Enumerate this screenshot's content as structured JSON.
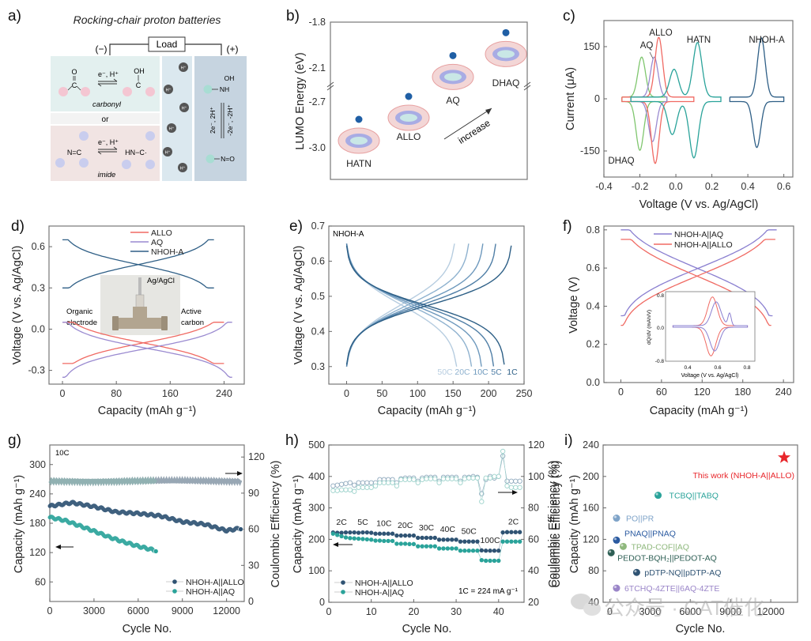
{
  "figure": {
    "panel_labels": [
      "a)",
      "b)",
      "c)",
      "d)",
      "e)",
      "f)",
      "g)",
      "h)",
      "i)"
    ],
    "watermark": "公众号 · CAT催化"
  },
  "panel_a": {
    "title": "Rocking-chair proton batteries",
    "load_label": "Load",
    "neg_label": "(−)",
    "pos_label": "(+)",
    "carbonyl_reaction": "e⁻, H⁺",
    "carbonyl_label": "carbonyl",
    "or_label": "or",
    "imide_reaction": "e⁻, H⁺",
    "imide_label": "imide",
    "imide_left": "N=C",
    "imide_right": "HN−C·",
    "proton_label": "H⁺",
    "cathode_top": "NH",
    "cathode_oh": "OH",
    "cathode_forward": "2e⁻, 2H⁺",
    "cathode_reverse": "-2e⁻, -2H⁺",
    "cathode_bottom": "N=O",
    "colors": {
      "carbonyl_bg": "#e3f0ef",
      "imide_bg": "#f1e4e3",
      "electrolyte_bg": "#dbe8ef",
      "cathode_bg": "#c6d4e0"
    }
  },
  "chart_data": [
    {
      "id": "b",
      "type": "scatter",
      "title": "",
      "xlabel": "",
      "ylabel": "LUMO Energy (eV)",
      "yticks": [
        "-1.8",
        "-2.1",
        "-2.7",
        "-3.0"
      ],
      "axis_break": true,
      "points": [
        {
          "name": "HATN",
          "lumo": -3.0
        },
        {
          "name": "ALLO",
          "lumo": -2.85
        },
        {
          "name": "AQ",
          "lumo": -2.2
        },
        {
          "name": "DHAQ",
          "lumo": -2.05
        }
      ],
      "annotation": "increase"
    },
    {
      "id": "c",
      "type": "line",
      "xlabel": "Voltage (V vs. Ag/AgCl)",
      "ylabel": "Current (μA)",
      "xlim": [
        -0.4,
        0.65
      ],
      "ylim": [
        -225,
        225
      ],
      "xticks": [
        "-0.4",
        "-0.2",
        "0.0",
        "0.2",
        "0.4",
        "0.6"
      ],
      "yticks": [
        "150",
        "0",
        "-150"
      ],
      "series": [
        {
          "name": "DHAQ",
          "color": "#7fc66e",
          "peaks": [
            {
              "v": -0.19,
              "i": 115
            },
            {
              "v": -0.2,
              "i": -140
            }
          ]
        },
        {
          "name": "AQ",
          "color": "#9a8ad0",
          "peaks": [
            {
              "v": -0.12,
              "i": 115
            },
            {
              "v": -0.13,
              "i": -115
            }
          ]
        },
        {
          "name": "ALLO",
          "color": "#f06a63",
          "peaks": [
            {
              "v": -0.095,
              "i": 172
            },
            {
              "v": -0.115,
              "i": -178
            }
          ]
        },
        {
          "name": "HATN",
          "color": "#2aa39a",
          "peaks": [
            {
              "v": -0.01,
              "i": 80
            },
            {
              "v": 0.12,
              "i": 157
            },
            {
              "v": -0.02,
              "i": -95
            },
            {
              "v": 0.1,
              "i": -162
            }
          ]
        },
        {
          "name": "NHOH-A",
          "color": "#2f5f86",
          "peaks": [
            {
              "v": 0.475,
              "i": 170
            },
            {
              "v": 0.45,
              "i": -132
            }
          ]
        }
      ]
    },
    {
      "id": "d",
      "type": "line",
      "xlabel": "Capacity (mAh g⁻¹)",
      "ylabel": "Voltage (V vs. Ag/AgCl)",
      "xlim": [
        -20,
        270
      ],
      "ylim": [
        -0.4,
        0.75
      ],
      "xticks": [
        "0",
        "80",
        "160",
        "240"
      ],
      "yticks": [
        "0.6",
        "0.3",
        "0.0",
        "-0.3"
      ],
      "legend": "top-center",
      "series": [
        {
          "name": "ALLO",
          "color": "#f06a63",
          "capacity": 240,
          "plateau": -0.1
        },
        {
          "name": "AQ",
          "color": "#9a8ad0",
          "capacity": 252,
          "plateau": -0.14
        },
        {
          "name": "NHOH-A",
          "color": "#2f5f86",
          "capacity": 225,
          "plateau": 0.47
        }
      ],
      "inset_labels": {
        "ref": "Ag/AgCl",
        "left": [
          "Organic",
          "electrode"
        ],
        "right": [
          "Active",
          "carbon"
        ]
      }
    },
    {
      "id": "e",
      "type": "line",
      "xlabel": "Capacity (mAh g⁻¹)",
      "ylabel": "Voltage (V vs. Ag/AgCl)",
      "xlim": [
        -25,
        250
      ],
      "ylim": [
        0.25,
        0.7
      ],
      "xticks": [
        "0",
        "50",
        "100",
        "150",
        "200",
        "250"
      ],
      "yticks": [
        "0.7",
        "0.6",
        "0.5",
        "0.4",
        "0.3"
      ],
      "label": "NHOH-A",
      "series": [
        {
          "name": "50C",
          "discharge": 155,
          "charge": 152
        },
        {
          "name": "20C",
          "discharge": 176,
          "charge": 172
        },
        {
          "name": "10C",
          "discharge": 190,
          "charge": 192
        },
        {
          "name": "5C",
          "discharge": 207,
          "charge": 210
        },
        {
          "name": "1C",
          "discharge": 222,
          "charge": 232
        }
      ]
    },
    {
      "id": "f",
      "type": "line",
      "xlabel": "Capacity (mAh g⁻¹)",
      "ylabel": "Voltage (V)",
      "xlim": [
        -25,
        255
      ],
      "ylim": [
        0,
        0.82
      ],
      "xticks": [
        "0",
        "60",
        "120",
        "180",
        "240"
      ],
      "yticks": [
        "0.8",
        "0.6",
        "0.4",
        "0.2",
        "0.0"
      ],
      "legend": "top-center",
      "series": [
        {
          "name": "NHOH-A||AQ",
          "color": "#8a7fd0",
          "capacity": 230,
          "plateau": 0.6
        },
        {
          "name": "NHOH-A||ALLO",
          "color": "#f06a63",
          "capacity": 228,
          "plateau": 0.56
        }
      ],
      "inset": {
        "xlabel": "Voltage (V vs. Ag/AgCl)",
        "ylabel": "dQ/dV (mAh/V)",
        "xticks": [
          "0.4",
          "0.6",
          "0.8"
        ],
        "yticks": [
          "0.8",
          "0.0",
          "-0.8"
        ]
      }
    },
    {
      "id": "g",
      "type": "scatter",
      "xlabel": "Cycle No.",
      "ylabel": "Capacity (mAh g⁻¹)",
      "ylabel_right": "Coulombic Efficiency (%)",
      "xlim": [
        0,
        13200
      ],
      "ylim": [
        20,
        340
      ],
      "ylim_right": [
        0,
        130
      ],
      "xticks": [
        "0",
        "3000",
        "6000",
        "9000",
        "12000"
      ],
      "yticks": [
        "300",
        "240",
        "180",
        "120",
        "60"
      ],
      "yticks_right": [
        "120",
        "90",
        "60",
        "30",
        "0"
      ],
      "rate_label": "10C",
      "legend": "bottom-right",
      "series": [
        {
          "name": "NHOH-A||ALLO",
          "color": "#2f5373",
          "x": [
            0,
            1500,
            3000,
            4500,
            6000,
            7500,
            9000,
            10500,
            12000,
            13000
          ],
          "capacity": [
            215,
            222,
            214,
            203,
            200,
            195,
            183,
            178,
            165,
            170
          ],
          "ce": 100
        },
        {
          "name": "NHOH-A||AQ",
          "color": "#2aa39a",
          "x": [
            0,
            1000,
            2000,
            3000,
            4000,
            5000,
            6000,
            7200
          ],
          "capacity": [
            192,
            186,
            175,
            164,
            152,
            142,
            133,
            124
          ],
          "ce": 100
        }
      ]
    },
    {
      "id": "h",
      "type": "scatter",
      "xlabel": "Cycle No.",
      "ylabel": "Capacity (mAh g⁻¹)",
      "ylabel_right": "Coulombic Efficiency (%)",
      "xlim": [
        0,
        46
      ],
      "ylim": [
        0,
        500
      ],
      "ylim_right": [
        20,
        120
      ],
      "xticks": [
        "0",
        "10",
        "20",
        "30",
        "40"
      ],
      "yticks": [
        "500",
        "400",
        "300",
        "200",
        "100",
        "0"
      ],
      "yticks_right": [
        "120",
        "100",
        "80",
        "60",
        "40",
        "20"
      ],
      "rate_labels": [
        "2C",
        "5C",
        "10C",
        "20C",
        "30C",
        "40C",
        "50C",
        "100C",
        "2C"
      ],
      "note": "1C = 224 mA g⁻¹",
      "legend": "bottom-left",
      "series": [
        {
          "name": "NHOH-A||ALLO",
          "color": "#2f5373",
          "capacity": [
            222,
            221,
            221,
            222,
            222,
            222,
            221,
            222,
            222,
            221,
            218,
            218,
            218,
            218,
            218,
            212,
            212,
            212,
            212,
            212,
            205,
            205,
            205,
            205,
            205,
            199,
            199,
            199,
            199,
            199,
            193,
            193,
            193,
            193,
            193,
            165,
            164,
            164,
            164,
            164,
            222,
            223,
            223,
            223,
            223
          ],
          "ce": [
            94,
            94.5,
            95,
            95.5,
            96,
            94.5,
            96,
            96,
            96,
            96,
            96,
            98,
            98,
            98,
            98,
            96,
            98.5,
            99,
            99,
            99,
            97,
            99,
            99.5,
            99.5,
            99.5,
            97,
            99.5,
            99.5,
            99.5,
            99.5,
            97,
            99.5,
            99.5,
            100,
            99.5,
            89,
            98,
            100,
            99,
            100,
            113,
            97,
            97,
            97,
            97
          ]
        },
        {
          "name": "NHOH-A||AQ",
          "color": "#2aa39a",
          "capacity": [
            218,
            214,
            210,
            206,
            204,
            203,
            202,
            201,
            200,
            199,
            196,
            196,
            195,
            195,
            195,
            186,
            186,
            186,
            185,
            185,
            178,
            178,
            178,
            178,
            178,
            171,
            171,
            171,
            171,
            171,
            164,
            164,
            164,
            164,
            164,
            134,
            132,
            132,
            132,
            132,
            193,
            193,
            193,
            193,
            193
          ],
          "ce": [
            91,
            91,
            91.5,
            91.5,
            91.5,
            90.5,
            93,
            93,
            93,
            93,
            94,
            96,
            96,
            96,
            96,
            94,
            98,
            98,
            98,
            98,
            96,
            98,
            98.5,
            98.5,
            98.5,
            96,
            98.5,
            98.5,
            98.5,
            98.5,
            96,
            98.5,
            99,
            99,
            99,
            84,
            99,
            99,
            100,
            100,
            116,
            94,
            93,
            93,
            93
          ]
        }
      ]
    },
    {
      "id": "i",
      "type": "scatter",
      "xlabel": "Cycle No.",
      "ylabel": "Capacity (mAh g⁻¹)",
      "ylabel_outer": "Coulombic Efficiency (%)",
      "xlim": [
        -500,
        14000
      ],
      "ylim": [
        40,
        240
      ],
      "xticks": [
        "0",
        "3000",
        "6000",
        "9000",
        "12000"
      ],
      "yticks": [
        "240",
        "200",
        "160",
        "120",
        "80",
        "40"
      ],
      "points": [
        {
          "name": "This work (NHOH-A||ALLO)",
          "x": 13000,
          "y": 224,
          "color": "#e8262b",
          "marker": "star"
        },
        {
          "name": "TCBQ||TABQ",
          "x": 3600,
          "y": 176,
          "color": "#2aa39a",
          "marker": "sphere"
        },
        {
          "name": "PO||PR",
          "x": 500,
          "y": 147,
          "color": "#7ea3c8",
          "marker": "sphere"
        },
        {
          "name": "PNAQ||PNAQ",
          "x": 500,
          "y": 119,
          "color": "#2a5aa0",
          "marker": "sphere"
        },
        {
          "name": "TPAD-COF||AQ",
          "x": 1000,
          "y": 111,
          "color": "#8fb87d",
          "marker": "sphere"
        },
        {
          "name": "PEDOT-BQH₂||PEDOT-AQ",
          "x": 100,
          "y": 103,
          "color": "#2e5f55",
          "marker": "sphere"
        },
        {
          "name": "pDTP-NQ||pDTP-AQ",
          "x": 2000,
          "y": 78,
          "color": "#2f5373",
          "marker": "sphere"
        },
        {
          "name": "6TCHQ-4ZTE||6AQ-4ZTE",
          "x": 500,
          "y": 58,
          "color": "#9a85c8",
          "marker": "sphere"
        }
      ]
    }
  ]
}
